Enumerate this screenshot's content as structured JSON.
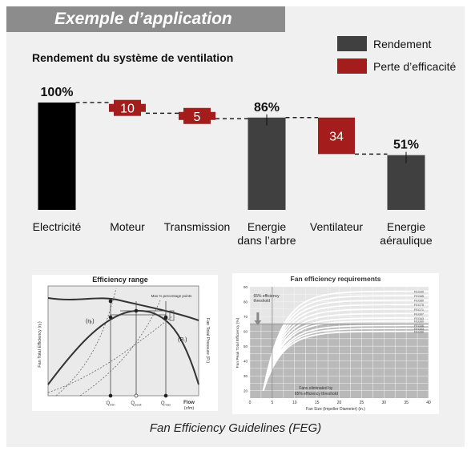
{
  "banner": {
    "title": "Exemple d’application"
  },
  "colors": {
    "black": "#000000",
    "dark_gray": "#404040",
    "red": "#a51c1c",
    "banner": "#8c8c8c",
    "panel": "#f0f0f0"
  },
  "chart_data": {
    "type": "bar",
    "title": "Rendement du système de ventilation",
    "categories": [
      "Electricité",
      "Moteur",
      "Transmission",
      "Energie\ndans l’arbre",
      "Ventilateur",
      "Energie\naéraulique"
    ],
    "series": [
      {
        "name": "Rendement",
        "color": "#404040"
      },
      {
        "name": "Perte d’efficacité",
        "color": "#a51c1c"
      }
    ],
    "bars": [
      {
        "kind": "total",
        "value": 100,
        "label": "100%",
        "color": "#000000"
      },
      {
        "kind": "loss",
        "value": 10,
        "label": "10",
        "color": "#a51c1c"
      },
      {
        "kind": "loss",
        "value": 5,
        "label": "5",
        "color": "#a51c1c"
      },
      {
        "kind": "total",
        "value": 86,
        "label": "86%",
        "color": "#404040"
      },
      {
        "kind": "loss",
        "value": 34,
        "label": "34",
        "color": "#a51c1c"
      },
      {
        "kind": "total",
        "value": 51,
        "label": "51%",
        "color": "#404040"
      }
    ],
    "ylim": [
      0,
      100
    ],
    "legend_position": "top-right"
  },
  "figures": {
    "efficiency_range": {
      "title": "Efficiency range",
      "ylabel_left": "Fan Total Efficiency (ηₜ)",
      "ylabel_right": "Fan Total Pressure (Pₜ)",
      "eta_label": "(ηₜ)",
      "pt_label": "(Pₜ)",
      "annotation": "Max % percentage points",
      "flow_label": "Flow",
      "flow_unit": "(cfm)",
      "q_labels": [
        "Q",
        "Q",
        "Q"
      ],
      "q_subs": [
        "min",
        "peak",
        "max"
      ]
    },
    "fan_requirements": {
      "title": "Fan efficiency requirements",
      "ylabel": "Fan Peak Total Efficiency (%)",
      "xlabel": "Fan Size (Impeller Diameter) (in.)",
      "threshold_label": "65% efficiency threshold",
      "eliminated_label_1": "Fans eliminated by",
      "eliminated_label_2": "65% efficiency threshold",
      "y_ticks": [
        "90",
        "80",
        "70",
        "60",
        "50",
        "40",
        "30",
        "20"
      ],
      "x_ticks": [
        "0",
        "5",
        "10",
        "15",
        "20",
        "25",
        "30",
        "35",
        "40"
      ],
      "feg_labels": [
        "FEG90",
        "FEG85",
        "FEG80",
        "FEG75",
        "FEG71",
        "FEG67",
        "FEG63",
        "FEG60",
        "FEG56",
        "FEG53",
        "FEG50"
      ]
    }
  },
  "caption": "Fan Efficiency Guidelines (FEG)"
}
